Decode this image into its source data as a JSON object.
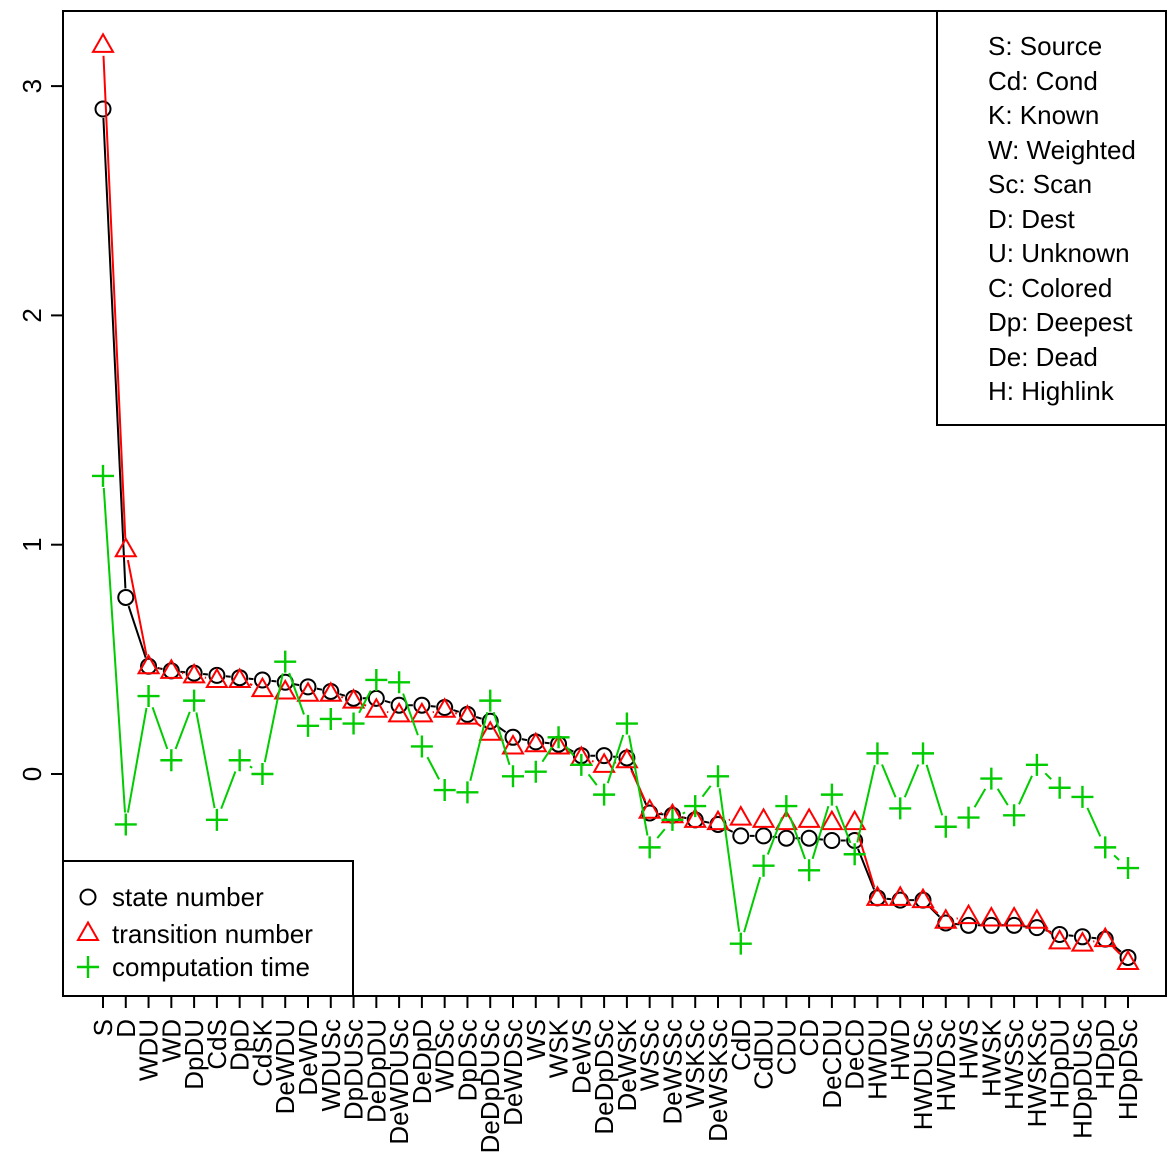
{
  "chart_data": {
    "type": "line",
    "title": "",
    "xlabel": "",
    "ylabel": "",
    "ylim": [
      -0.95,
      3.3
    ],
    "yticks": [
      0,
      1,
      2,
      3
    ],
    "grid": false,
    "categories": [
      "S",
      "D",
      "WDU",
      "WD",
      "DpDU",
      "CdS",
      "DpD",
      "CdSK",
      "DeWDU",
      "DeWD",
      "WDUSc",
      "DpDUSc",
      "DeDpDU",
      "DeWDUSc",
      "DeDpD",
      "WDSc",
      "DpDSc",
      "DeDpDUSc",
      "DeWDSc",
      "WS",
      "WSK",
      "DeWS",
      "DeDpDSc",
      "DeWSK",
      "WSSc",
      "DeWSSc",
      "WSKSc",
      "DeWSKSc",
      "CdD",
      "CdDU",
      "CDU",
      "CD",
      "DeCDU",
      "DeCD",
      "HWDU",
      "HWD",
      "HWDUSc",
      "HWDSc",
      "HWS",
      "HWSK",
      "HWSSc",
      "HWSKSc",
      "HDpDU",
      "HDpDUSc",
      "HDpD",
      "HDpDSc"
    ],
    "series": [
      {
        "name": "state number",
        "marker": "circle",
        "color": "#000000",
        "values": [
          2.9,
          0.77,
          0.47,
          0.45,
          0.44,
          0.43,
          0.42,
          0.41,
          0.4,
          0.38,
          0.36,
          0.33,
          0.33,
          0.3,
          0.3,
          0.29,
          0.26,
          0.23,
          0.16,
          0.14,
          0.13,
          0.08,
          0.08,
          0.07,
          -0.17,
          -0.18,
          -0.2,
          -0.22,
          -0.27,
          -0.27,
          -0.28,
          -0.28,
          -0.29,
          -0.29,
          -0.54,
          -0.55,
          -0.55,
          -0.65,
          -0.66,
          -0.66,
          -0.66,
          -0.67,
          -0.7,
          -0.71,
          -0.72,
          -0.8
        ]
      },
      {
        "name": "transition number",
        "marker": "triangle",
        "color": "#ff0000",
        "values": [
          3.18,
          0.98,
          0.47,
          0.45,
          0.43,
          0.41,
          0.41,
          0.37,
          0.36,
          0.35,
          0.35,
          0.32,
          0.28,
          0.26,
          0.26,
          0.28,
          0.25,
          0.18,
          0.12,
          0.13,
          0.12,
          0.07,
          0.04,
          0.06,
          -0.16,
          -0.18,
          -0.2,
          -0.21,
          -0.19,
          -0.2,
          -0.21,
          -0.2,
          -0.21,
          -0.21,
          -0.54,
          -0.54,
          -0.55,
          -0.64,
          -0.62,
          -0.63,
          -0.63,
          -0.64,
          -0.73,
          -0.74,
          -0.72,
          -0.82
        ]
      },
      {
        "name": "computation time",
        "marker": "plus",
        "color": "#00cc00",
        "values": [
          1.3,
          -0.22,
          0.34,
          0.06,
          0.32,
          -0.2,
          0.06,
          0.0,
          0.49,
          0.21,
          0.24,
          0.22,
          0.41,
          0.4,
          0.12,
          -0.07,
          -0.08,
          0.32,
          -0.01,
          0.01,
          0.16,
          0.04,
          -0.09,
          0.22,
          -0.32,
          -0.2,
          -0.14,
          -0.01,
          -0.74,
          -0.4,
          -0.14,
          -0.42,
          -0.09,
          -0.35,
          0.09,
          -0.15,
          0.09,
          -0.23,
          -0.19,
          -0.02,
          -0.18,
          0.04,
          -0.06,
          -0.1,
          -0.32,
          -0.41
        ]
      }
    ],
    "legend": {
      "placement": "bottom-left",
      "entries": [
        "state number",
        "transition number",
        "computation time"
      ]
    },
    "abbreviation_legend": {
      "placement": "top-right",
      "entries": [
        "S: Source",
        "Cd: Cond",
        "K: Known",
        "W: Weighted",
        "Sc: Scan",
        "D: Dest",
        "U: Unknown",
        "C: Colored",
        "Dp: Deepest",
        "De: Dead",
        "H: Highlink"
      ]
    }
  }
}
